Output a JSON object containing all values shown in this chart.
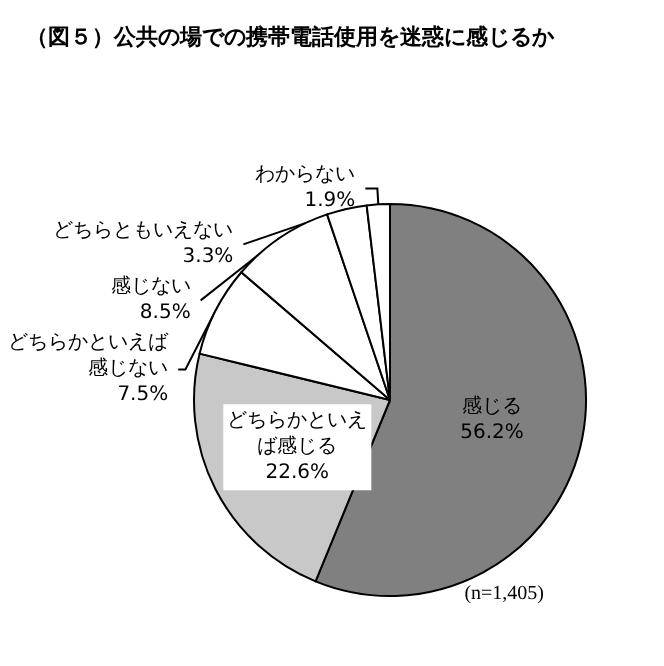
{
  "chart_data": {
    "type": "pie",
    "title": "（図５）公共の場での携帯電話使用を迷惑に感じるか",
    "categories": [
      "感じる",
      "どちらかといえば感じる",
      "どちらかといえば感じない",
      "感じない",
      "どちらともいえない",
      "わからない"
    ],
    "values": [
      56.2,
      22.6,
      7.5,
      8.5,
      3.3,
      1.9
    ],
    "value_labels": [
      "56.2%",
      "22.6%",
      "7.5%",
      "8.5%",
      "3.3%",
      "1.9%"
    ],
    "colors": [
      "#808080",
      "#c8c8c8",
      "#ffffff",
      "#ffffff",
      "#ffffff",
      "#ffffff"
    ],
    "annotations": [
      "(n=1,405)"
    ],
    "legend": false
  }
}
